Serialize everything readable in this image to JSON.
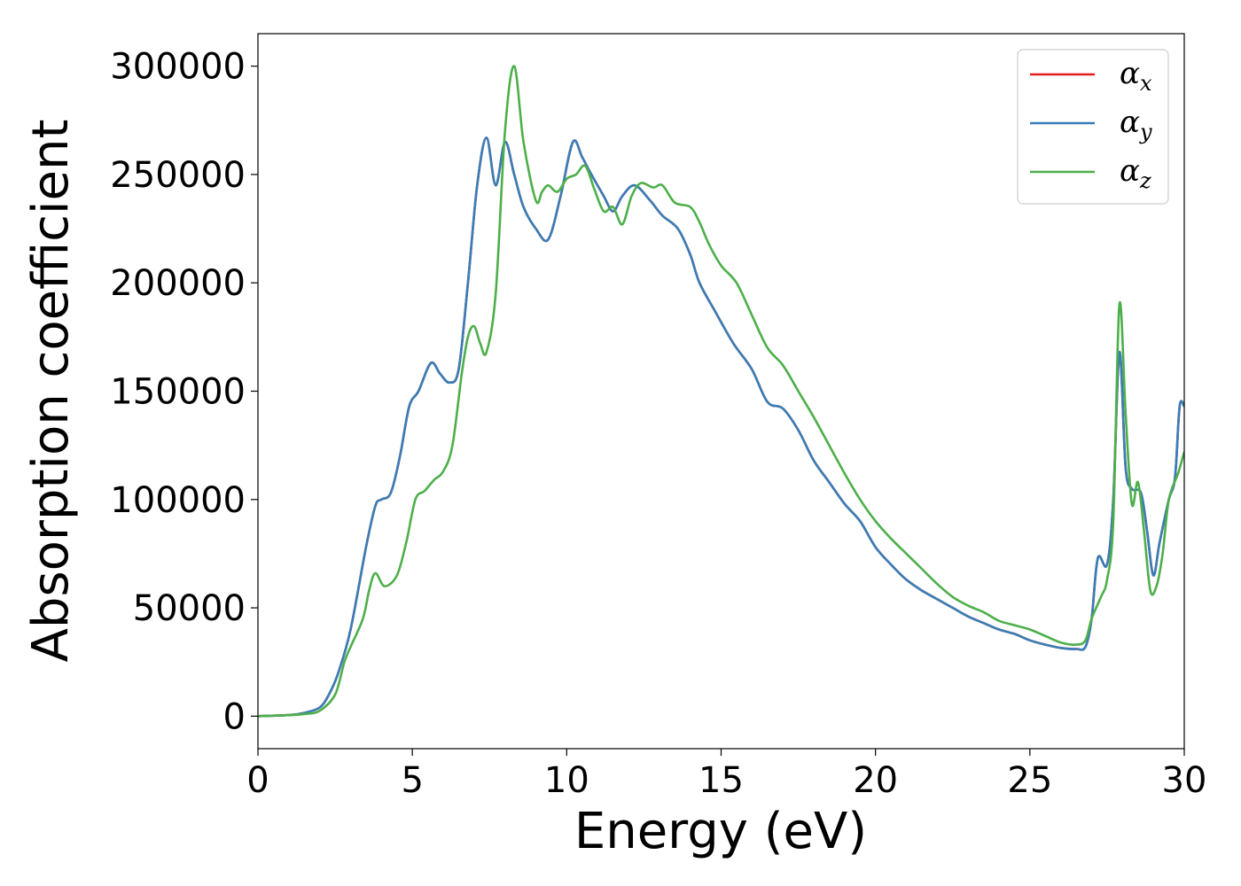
{
  "chart_data": {
    "type": "line",
    "xlabel": "Energy (eV)",
    "ylabel": "Absorption coefficient",
    "xlim": [
      0,
      30
    ],
    "ylim": [
      -15000,
      315000
    ],
    "xticks": [
      0,
      5,
      10,
      15,
      20,
      25,
      30
    ],
    "yticks": [
      0,
      50000,
      100000,
      150000,
      200000,
      250000,
      300000
    ],
    "grid": false,
    "legend_position": "top-right",
    "series": [
      {
        "name": "αx",
        "symbol": "α",
        "subscript": "x",
        "color": "#e41a1c",
        "x": [
          0,
          1,
          1.5,
          2,
          2.3,
          2.6,
          3,
          3.5,
          3.8,
          4,
          4.3,
          4.6,
          4.9,
          5.2,
          5.6,
          5.9,
          6.2,
          6.5,
          6.8,
          7.1,
          7.4,
          7.7,
          8.0,
          8.3,
          8.6,
          9.0,
          9.4,
          9.8,
          10.2,
          10.5,
          10.8,
          11.2,
          11.5,
          11.8,
          12.2,
          12.7,
          13.1,
          13.6,
          14.0,
          14.3,
          14.8,
          15.4,
          16.0,
          16.5,
          17.0,
          17.5,
          18.0,
          18.5,
          19.0,
          19.5,
          20.0,
          20.5,
          21.0,
          21.5,
          22.0,
          22.5,
          23.0,
          23.5,
          24.0,
          24.5,
          25.0,
          25.5,
          26.0,
          26.5,
          26.8,
          27.0,
          27.2,
          27.5,
          27.7,
          27.9,
          28.1,
          28.3,
          28.6,
          28.8,
          29.0,
          29.2,
          29.5,
          29.7,
          29.85,
          30
        ],
        "y": [
          0,
          500,
          1500,
          4000,
          10000,
          20000,
          40000,
          78000,
          97000,
          100000,
          103000,
          120000,
          143000,
          150000,
          163000,
          158000,
          154000,
          160000,
          200000,
          245000,
          267000,
          245000,
          265000,
          250000,
          235000,
          225000,
          220000,
          240000,
          265000,
          258000,
          250000,
          240000,
          233000,
          240000,
          245000,
          238000,
          231000,
          225000,
          213000,
          200000,
          187000,
          172000,
          160000,
          145000,
          142000,
          132000,
          118000,
          108000,
          98000,
          90000,
          78000,
          70000,
          63000,
          58000,
          54000,
          50000,
          46000,
          43000,
          40000,
          38000,
          35000,
          33000,
          31500,
          31000,
          32000,
          45000,
          73000,
          70000,
          100000,
          168000,
          115000,
          105000,
          103000,
          85000,
          65000,
          80000,
          100000,
          110000,
          143000,
          143000
        ]
      },
      {
        "name": "αy",
        "symbol": "α",
        "subscript": "y",
        "color": "#377eb8",
        "x": [
          0,
          1,
          1.5,
          2,
          2.3,
          2.6,
          3,
          3.5,
          3.8,
          4,
          4.3,
          4.6,
          4.9,
          5.2,
          5.6,
          5.9,
          6.2,
          6.5,
          6.8,
          7.1,
          7.4,
          7.7,
          8.0,
          8.3,
          8.6,
          9.0,
          9.4,
          9.8,
          10.2,
          10.5,
          10.8,
          11.2,
          11.5,
          11.8,
          12.2,
          12.7,
          13.1,
          13.6,
          14.0,
          14.3,
          14.8,
          15.4,
          16.0,
          16.5,
          17.0,
          17.5,
          18.0,
          18.5,
          19.0,
          19.5,
          20.0,
          20.5,
          21.0,
          21.5,
          22.0,
          22.5,
          23.0,
          23.5,
          24.0,
          24.5,
          25.0,
          25.5,
          26.0,
          26.5,
          26.8,
          27.0,
          27.2,
          27.5,
          27.7,
          27.9,
          28.1,
          28.3,
          28.6,
          28.8,
          29.0,
          29.2,
          29.5,
          29.7,
          29.85,
          30
        ],
        "y": [
          0,
          500,
          1500,
          4000,
          10000,
          20000,
          40000,
          78000,
          97000,
          100000,
          103000,
          120000,
          143000,
          150000,
          163000,
          158000,
          154000,
          160000,
          200000,
          245000,
          267000,
          245000,
          265000,
          250000,
          235000,
          225000,
          220000,
          240000,
          265000,
          258000,
          250000,
          240000,
          233000,
          240000,
          245000,
          238000,
          231000,
          225000,
          213000,
          200000,
          187000,
          172000,
          160000,
          145000,
          142000,
          132000,
          118000,
          108000,
          98000,
          90000,
          78000,
          70000,
          63000,
          58000,
          54000,
          50000,
          46000,
          43000,
          40000,
          38000,
          35000,
          33000,
          31500,
          31000,
          32000,
          45000,
          73000,
          70000,
          100000,
          168000,
          115000,
          105000,
          103000,
          85000,
          65000,
          80000,
          100000,
          110000,
          143000,
          143000
        ]
      },
      {
        "name": "αz",
        "symbol": "α",
        "subscript": "z",
        "color": "#4daf4a",
        "x": [
          0,
          1,
          1.5,
          2,
          2.5,
          2.8,
          3,
          3.4,
          3.6,
          3.8,
          4.1,
          4.5,
          4.8,
          5.1,
          5.4,
          5.7,
          6.0,
          6.3,
          6.6,
          6.8,
          7.0,
          7.2,
          7.4,
          7.7,
          8.0,
          8.3,
          8.6,
          9.0,
          9.2,
          9.4,
          9.7,
          10.0,
          10.3,
          10.6,
          10.9,
          11.2,
          11.5,
          11.8,
          12.1,
          12.4,
          12.8,
          13.1,
          13.5,
          14.0,
          14.3,
          14.6,
          15.0,
          15.5,
          16.0,
          16.5,
          17.0,
          17.5,
          18.0,
          18.5,
          19.0,
          19.5,
          20.0,
          20.5,
          21.0,
          21.5,
          22.0,
          22.5,
          23.0,
          23.5,
          24.0,
          24.5,
          25.0,
          25.5,
          26.0,
          26.5,
          26.8,
          27.0,
          27.3,
          27.5,
          27.7,
          27.9,
          28.1,
          28.3,
          28.5,
          28.7,
          28.9,
          29.1,
          29.3,
          29.5,
          29.8,
          30
        ],
        "y": [
          0,
          500,
          1000,
          2500,
          10000,
          25000,
          32000,
          45000,
          58000,
          66000,
          60000,
          65000,
          80000,
          100000,
          104000,
          109000,
          113000,
          125000,
          158000,
          175000,
          180000,
          172000,
          168000,
          195000,
          270000,
          300000,
          265000,
          238000,
          242000,
          245000,
          242000,
          248000,
          250000,
          254000,
          243000,
          233000,
          235000,
          227000,
          240000,
          246000,
          244000,
          245000,
          237000,
          235000,
          228000,
          218000,
          208000,
          200000,
          185000,
          170000,
          162000,
          150000,
          138000,
          125000,
          112000,
          100000,
          90000,
          82000,
          75000,
          68000,
          61000,
          55000,
          51000,
          48000,
          44000,
          42000,
          40000,
          37000,
          34000,
          33000,
          35000,
          45000,
          55000,
          63000,
          90000,
          190000,
          140000,
          98000,
          108000,
          85000,
          58000,
          60000,
          75000,
          100000,
          112000,
          122000
        ]
      }
    ]
  }
}
